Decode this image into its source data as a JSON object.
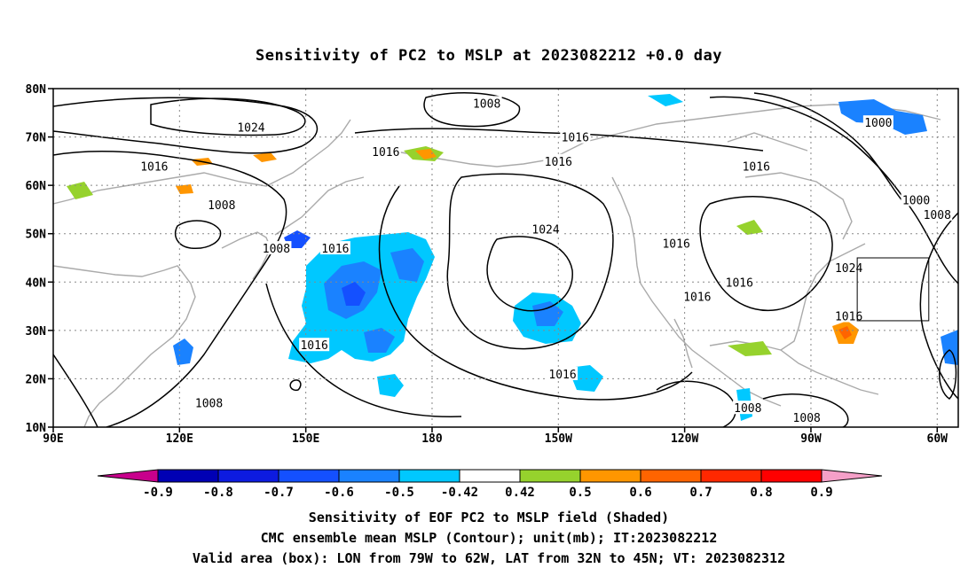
{
  "title": "Sensitivity of PC2 to MSLP at 2023082212 +0.0 day",
  "map": {
    "lon_range": [
      90,
      305
    ],
    "lat_range": [
      10,
      80
    ],
    "lat_ticks": [
      {
        "lat": 80,
        "label": "80N"
      },
      {
        "lat": 70,
        "label": "70N"
      },
      {
        "lat": 60,
        "label": "60N"
      },
      {
        "lat": 50,
        "label": "50N"
      },
      {
        "lat": 40,
        "label": "40N"
      },
      {
        "lat": 30,
        "label": "30N"
      },
      {
        "lat": 20,
        "label": "20N"
      },
      {
        "lat": 10,
        "label": "10N"
      }
    ],
    "lon_ticks": [
      {
        "lon": 90,
        "label": "90E"
      },
      {
        "lon": 120,
        "label": "120E"
      },
      {
        "lon": 150,
        "label": "150E"
      },
      {
        "lon": 180,
        "label": "180"
      },
      {
        "lon": 210,
        "label": "150W"
      },
      {
        "lon": 240,
        "label": "120W"
      },
      {
        "lon": 270,
        "label": "90W"
      },
      {
        "lon": 300,
        "label": "60W"
      }
    ],
    "contour_labels": [
      {
        "text": "1008",
        "lon": 193,
        "lat": 77
      },
      {
        "text": "1024",
        "lon": 137,
        "lat": 72
      },
      {
        "text": "1016",
        "lon": 214,
        "lat": 70
      },
      {
        "text": "1000",
        "lon": 286,
        "lat": 73
      },
      {
        "text": "1016",
        "lon": 169,
        "lat": 67
      },
      {
        "text": "1016",
        "lon": 210,
        "lat": 65
      },
      {
        "text": "1016",
        "lon": 257,
        "lat": 64
      },
      {
        "text": "1016",
        "lon": 114,
        "lat": 64
      },
      {
        "text": "1000",
        "lon": 295,
        "lat": 57
      },
      {
        "text": "1008",
        "lon": 130,
        "lat": 56
      },
      {
        "text": "1008",
        "lon": 300,
        "lat": 54
      },
      {
        "text": "1024",
        "lon": 207,
        "lat": 51
      },
      {
        "text": "1016",
        "lon": 238,
        "lat": 48
      },
      {
        "text": "1008",
        "lon": 143,
        "lat": 47
      },
      {
        "text": "1016",
        "lon": 157,
        "lat": 47
      },
      {
        "text": "1024",
        "lon": 279,
        "lat": 43
      },
      {
        "text": "1016",
        "lon": 253,
        "lat": 40
      },
      {
        "text": "1016",
        "lon": 243,
        "lat": 37
      },
      {
        "text": "1016",
        "lon": 279,
        "lat": 33
      },
      {
        "text": "1016",
        "lon": 152,
        "lat": 27
      },
      {
        "text": "1016",
        "lon": 211,
        "lat": 21
      },
      {
        "text": "1008",
        "lon": 127,
        "lat": 15
      },
      {
        "text": "1008",
        "lon": 255,
        "lat": 14
      },
      {
        "text": "1008",
        "lon": 269,
        "lat": 12
      }
    ],
    "valid_box": {
      "lon_min": 281,
      "lon_max": 298,
      "lat_min": 32,
      "lat_max": 45
    }
  },
  "colorbar": {
    "labels": [
      "-0.9",
      "-0.8",
      "-0.7",
      "-0.6",
      "-0.5",
      "-0.42",
      "0.42",
      "0.5",
      "0.6",
      "0.7",
      "0.8",
      "0.9"
    ],
    "colors": [
      "#0000b4",
      "#0d1be0",
      "#1450ff",
      "#1a82ff",
      "#00c8ff",
      "#ffffff",
      "#96d22d",
      "#ff9600",
      "#ff6400",
      "#ff2800",
      "#ff0000"
    ],
    "low_end_color": "#c8008c",
    "high_end_color": "#f5a0c8"
  },
  "footer": {
    "line1": "Sensitivity of EOF PC2 to MSLP field (Shaded)",
    "line2": "CMC ensemble mean MSLP (Contour); unit(mb); IT:2023082212",
    "line3": "Valid area (box): LON from 79W to 62W, LAT from 32N to 45N; VT: 2023082312"
  }
}
